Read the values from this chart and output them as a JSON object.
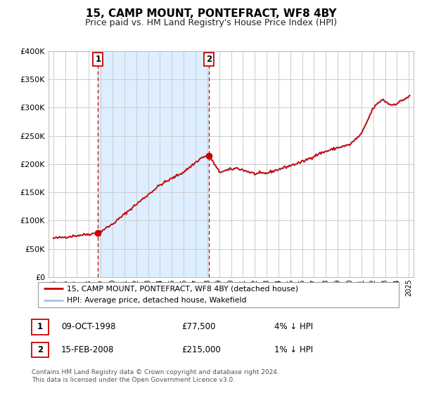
{
  "title": "15, CAMP MOUNT, PONTEFRACT, WF8 4BY",
  "subtitle": "Price paid vs. HM Land Registry's House Price Index (HPI)",
  "ylim": [
    0,
    400000
  ],
  "yticks": [
    0,
    50000,
    100000,
    150000,
    200000,
    250000,
    300000,
    350000,
    400000
  ],
  "ytick_labels": [
    "£0",
    "£50K",
    "£100K",
    "£150K",
    "£200K",
    "£250K",
    "£300K",
    "£350K",
    "£400K"
  ],
  "xlim_start": 1994.6,
  "xlim_end": 2025.4,
  "background_color": "#ffffff",
  "plot_bg_color": "#ffffff",
  "grid_color": "#cccccc",
  "hpi_line_color": "#a8c4e0",
  "price_line_color": "#cc0000",
  "shade_color": "#ddeeff",
  "sale1_x": 1998.775,
  "sale1_y": 77500,
  "sale2_x": 2008.12,
  "sale2_y": 215000,
  "sale1_date": "09-OCT-1998",
  "sale1_price": "£77,500",
  "sale1_hpi": "4% ↓ HPI",
  "sale2_date": "15-FEB-2008",
  "sale2_price": "£215,000",
  "sale2_hpi": "1% ↓ HPI",
  "legend_line1": "15, CAMP MOUNT, PONTEFRACT, WF8 4BY (detached house)",
  "legend_line2": "HPI: Average price, detached house, Wakefield",
  "footer_line1": "Contains HM Land Registry data © Crown copyright and database right 2024.",
  "footer_line2": "This data is licensed under the Open Government Licence v3.0.",
  "title_fontsize": 11,
  "subtitle_fontsize": 9
}
